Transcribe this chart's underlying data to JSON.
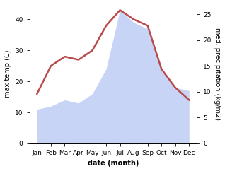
{
  "months": [
    "Jan",
    "Feb",
    "Mar",
    "Apr",
    "May",
    "Jun",
    "Jul",
    "Aug",
    "Sep",
    "Oct",
    "Nov",
    "Dec"
  ],
  "temp_max": [
    16,
    25,
    28,
    27,
    30,
    38,
    43,
    40,
    38,
    24,
    18,
    14
  ],
  "precipitation_left_scale": [
    11,
    12,
    14,
    13,
    16,
    24,
    43,
    39,
    37,
    24,
    18,
    17
  ],
  "temp_color": "#b94a4a",
  "precip_fill_color": "#c8d4f5",
  "left_ylim": [
    0,
    45
  ],
  "right_ylim": [
    0,
    27
  ],
  "left_yticks": [
    0,
    10,
    20,
    30,
    40
  ],
  "right_yticks": [
    0,
    5,
    10,
    15,
    20,
    25
  ],
  "xlabel": "date (month)",
  "ylabel_left": "max temp (C)",
  "ylabel_right": "med. precipitation (kg/m2)",
  "background_color": "#ffffff",
  "title_fontsize": 7,
  "label_fontsize": 7,
  "tick_fontsize": 6.5,
  "line_width": 1.8
}
